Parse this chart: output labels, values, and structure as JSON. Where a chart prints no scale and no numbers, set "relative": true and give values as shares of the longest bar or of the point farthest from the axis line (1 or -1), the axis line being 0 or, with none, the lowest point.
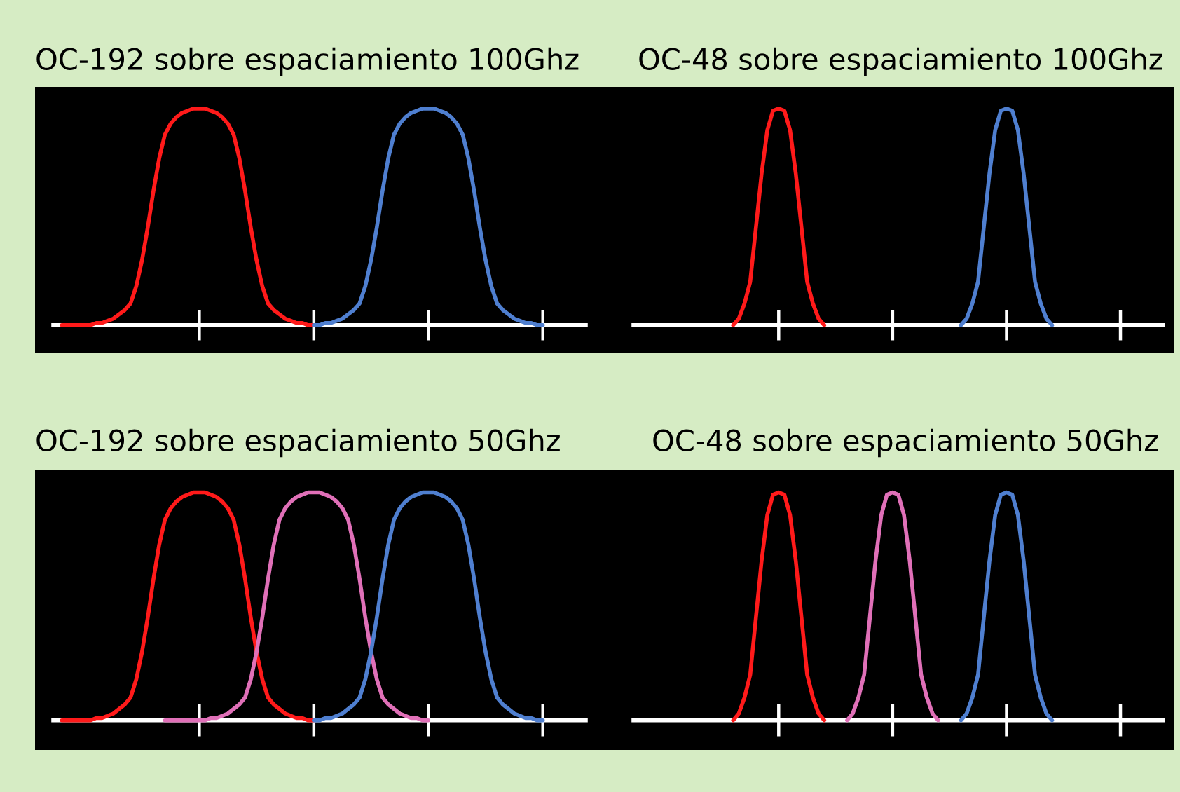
{
  "chart_data": [
    {
      "type": "line",
      "title": "OC-192 sobre espaciamiento 100Ghz",
      "relative": true,
      "categories": [
        null,
        null,
        null,
        null,
        null,
        null,
        null,
        null,
        null,
        null,
        null,
        null,
        null,
        null,
        null,
        null,
        null,
        null,
        null,
        null,
        null,
        null,
        null,
        null,
        null,
        null,
        null,
        null,
        null,
        null,
        null,
        null,
        null,
        null,
        null,
        null,
        null,
        null,
        null,
        null,
        null,
        null,
        null,
        null,
        null,
        null,
        null,
        null,
        null,
        null,
        null,
        null,
        null,
        null,
        null,
        null,
        null,
        null,
        null,
        null,
        null,
        null,
        null,
        null,
        null,
        null,
        null,
        null,
        null,
        null,
        null,
        null,
        null,
        null,
        null,
        null,
        null,
        null,
        null,
        null,
        null,
        null,
        null,
        null,
        null,
        null,
        null,
        null,
        null,
        null,
        null
      ],
      "series": [
        {
          "color": "#ff1a1a",
          "values": [
            0,
            0,
            0,
            0,
            0,
            0,
            0.01,
            0.01,
            0.02,
            0.03,
            0.05,
            0.07,
            0.1,
            0.18,
            0.3,
            0.45,
            0.62,
            0.77,
            0.88,
            0.93,
            0.96,
            0.98,
            0.99,
            1,
            1,
            1,
            0.99,
            0.98,
            0.96,
            0.93,
            0.88,
            0.77,
            0.62,
            0.45,
            0.3,
            0.18,
            0.1,
            0.07,
            0.05,
            0.03,
            0.02,
            0.01,
            0.01,
            0,
            0,
            null,
            null,
            null,
            null,
            null,
            null,
            null,
            null,
            null,
            null,
            null,
            null,
            null,
            null,
            null,
            null,
            null,
            null,
            null,
            null,
            null,
            null,
            null,
            null,
            null,
            null,
            null,
            null,
            null,
            null,
            null,
            null,
            null,
            null,
            null,
            null,
            null,
            null,
            null,
            null,
            null,
            null,
            null,
            null,
            null,
            null
          ]
        },
        {
          "color": "#4f7fd0",
          "values": [
            null,
            null,
            null,
            null,
            null,
            null,
            null,
            null,
            null,
            null,
            null,
            null,
            null,
            null,
            null,
            null,
            null,
            null,
            null,
            null,
            null,
            null,
            null,
            null,
            null,
            null,
            null,
            null,
            null,
            null,
            null,
            null,
            null,
            null,
            null,
            null,
            null,
            null,
            null,
            null,
            null,
            null,
            null,
            null,
            0,
            0,
            0.01,
            0.01,
            0.02,
            0.03,
            0.05,
            0.07,
            0.1,
            0.18,
            0.3,
            0.45,
            0.62,
            0.77,
            0.88,
            0.93,
            0.96,
            0.98,
            0.99,
            1,
            1,
            1,
            0.99,
            0.98,
            0.96,
            0.93,
            0.88,
            0.77,
            0.62,
            0.45,
            0.3,
            0.18,
            0.1,
            0.07,
            0.05,
            0.03,
            0.02,
            0.01,
            0.01,
            0,
            0,
            null,
            null,
            null,
            null,
            null,
            null
          ]
        }
      ]
    },
    {
      "type": "line",
      "title": "OC-48 sobre espaciamiento 100Ghz",
      "relative": true,
      "categories": [
        null,
        null,
        null,
        null,
        null,
        null,
        null,
        null,
        null,
        null,
        null,
        null,
        null,
        null,
        null,
        null,
        null,
        null,
        null,
        null,
        null,
        null,
        null,
        null,
        null,
        null,
        null,
        null,
        null,
        null,
        null,
        null,
        null,
        null,
        null,
        null,
        null,
        null,
        null,
        null,
        null,
        null,
        null,
        null,
        null,
        null,
        null,
        null,
        null,
        null,
        null,
        null,
        null,
        null,
        null,
        null,
        null,
        null,
        null,
        null,
        null,
        null,
        null,
        null,
        null,
        null,
        null,
        null,
        null,
        null,
        null,
        null,
        null,
        null,
        null,
        null,
        null,
        null,
        null,
        null,
        null,
        null,
        null,
        null,
        null,
        null,
        null,
        null,
        null,
        null,
        null
      ],
      "series": [
        {
          "color": "#ff1a1a",
          "values": [
            null,
            null,
            null,
            null,
            null,
            null,
            null,
            null,
            null,
            null,
            null,
            null,
            null,
            null,
            null,
            null,
            0,
            0.03,
            0.1,
            0.2,
            0.45,
            0.7,
            0.9,
            0.99,
            1,
            0.99,
            0.9,
            0.7,
            0.45,
            0.2,
            0.1,
            0.03,
            0,
            null,
            null,
            null,
            null,
            null,
            null,
            null,
            null,
            null,
            null,
            null,
            null,
            null,
            null,
            null,
            null,
            null,
            null,
            null,
            null,
            null,
            null,
            null,
            null,
            null,
            null,
            null,
            null,
            null,
            null,
            null,
            null,
            null,
            null,
            null,
            null,
            null,
            null,
            null,
            null,
            null,
            null,
            null,
            null,
            null,
            null,
            null,
            null,
            null,
            null,
            null,
            null,
            null,
            null,
            null,
            null,
            null,
            null
          ]
        },
        {
          "color": "#4f7fd0",
          "values": [
            null,
            null,
            null,
            null,
            null,
            null,
            null,
            null,
            null,
            null,
            null,
            null,
            null,
            null,
            null,
            null,
            null,
            null,
            null,
            null,
            null,
            null,
            null,
            null,
            null,
            null,
            null,
            null,
            null,
            null,
            null,
            null,
            null,
            null,
            null,
            null,
            null,
            null,
            null,
            null,
            null,
            null,
            null,
            null,
            null,
            null,
            null,
            null,
            null,
            null,
            null,
            null,
            null,
            null,
            null,
            null,
            0,
            0.03,
            0.1,
            0.2,
            0.45,
            0.7,
            0.9,
            0.99,
            1,
            0.99,
            0.9,
            0.7,
            0.45,
            0.2,
            0.1,
            0.03,
            0,
            null,
            null,
            null,
            null,
            null,
            null,
            null,
            null,
            null,
            null,
            null,
            null,
            null,
            null,
            null,
            null,
            null,
            null
          ]
        }
      ]
    },
    {
      "type": "line",
      "title": "OC-192 sobre espaciamiento 50Ghz",
      "relative": true,
      "categories": [
        null,
        null,
        null,
        null,
        null,
        null,
        null,
        null,
        null,
        null,
        null,
        null,
        null,
        null,
        null,
        null,
        null,
        null,
        null,
        null,
        null,
        null,
        null,
        null,
        null,
        null,
        null,
        null,
        null,
        null,
        null,
        null,
        null,
        null,
        null,
        null,
        null,
        null,
        null,
        null,
        null,
        null,
        null,
        null,
        null,
        null,
        null,
        null,
        null,
        null,
        null,
        null,
        null,
        null,
        null,
        null,
        null,
        null,
        null,
        null,
        null,
        null,
        null,
        null,
        null,
        null,
        null,
        null,
        null,
        null,
        null,
        null,
        null,
        null,
        null,
        null,
        null,
        null,
        null,
        null,
        null,
        null,
        null,
        null,
        null,
        null,
        null,
        null,
        null,
        null,
        null
      ],
      "series": [
        {
          "color": "#ff1a1a",
          "values": [
            0,
            0,
            0,
            0,
            0,
            0,
            0.01,
            0.01,
            0.02,
            0.03,
            0.05,
            0.07,
            0.1,
            0.18,
            0.3,
            0.45,
            0.62,
            0.77,
            0.88,
            0.93,
            0.96,
            0.98,
            0.99,
            1,
            1,
            1,
            0.99,
            0.98,
            0.96,
            0.93,
            0.88,
            0.77,
            0.62,
            0.45,
            0.3,
            0.18,
            0.1,
            0.07,
            0.05,
            0.03,
            0.02,
            0.01,
            0.01,
            0,
            0,
            null,
            null,
            null,
            null,
            null,
            null,
            null,
            null,
            null,
            null,
            null,
            null,
            null,
            null,
            null,
            null,
            null,
            null,
            null,
            null,
            null,
            null,
            null,
            null,
            null,
            null,
            null,
            null,
            null,
            null,
            null,
            null,
            null,
            null,
            null,
            null,
            null,
            null,
            null,
            null,
            null,
            null,
            null,
            null,
            null,
            null
          ]
        },
        {
          "color": "#e070b8",
          "values": [
            null,
            null,
            null,
            null,
            null,
            null,
            null,
            null,
            null,
            null,
            null,
            null,
            null,
            null,
            null,
            null,
            null,
            null,
            0,
            0,
            0,
            0,
            0,
            0,
            0,
            0,
            0.01,
            0.01,
            0.02,
            0.03,
            0.05,
            0.07,
            0.1,
            0.18,
            0.3,
            0.45,
            0.62,
            0.77,
            0.88,
            0.93,
            0.96,
            0.98,
            0.99,
            1,
            1,
            1,
            0.99,
            0.98,
            0.96,
            0.93,
            0.88,
            0.77,
            0.62,
            0.45,
            0.3,
            0.18,
            0.1,
            0.07,
            0.05,
            0.03,
            0.02,
            0.01,
            0.01,
            0,
            0,
            null,
            null,
            null,
            null,
            null,
            null,
            null,
            null,
            null,
            null,
            null,
            null,
            null,
            null,
            null,
            null,
            null,
            null,
            null,
            null,
            null,
            null,
            null,
            null,
            null,
            null
          ]
        },
        {
          "color": "#4f7fd0",
          "values": [
            null,
            null,
            null,
            null,
            null,
            null,
            null,
            null,
            null,
            null,
            null,
            null,
            null,
            null,
            null,
            null,
            null,
            null,
            null,
            null,
            null,
            null,
            null,
            null,
            null,
            null,
            null,
            null,
            null,
            null,
            null,
            null,
            null,
            null,
            null,
            null,
            null,
            null,
            null,
            null,
            null,
            null,
            null,
            null,
            0,
            0,
            0.01,
            0.01,
            0.02,
            0.03,
            0.05,
            0.07,
            0.1,
            0.18,
            0.3,
            0.45,
            0.62,
            0.77,
            0.88,
            0.93,
            0.96,
            0.98,
            0.99,
            1,
            1,
            1,
            0.99,
            0.98,
            0.96,
            0.93,
            0.88,
            0.77,
            0.62,
            0.45,
            0.3,
            0.18,
            0.1,
            0.07,
            0.05,
            0.03,
            0.02,
            0.01,
            0.01,
            0,
            0,
            null,
            null,
            null,
            null,
            null,
            null
          ]
        }
      ]
    },
    {
      "type": "line",
      "title": "OC-48 sobre espaciamiento 50Ghz",
      "relative": true,
      "categories": [
        null,
        null,
        null,
        null,
        null,
        null,
        null,
        null,
        null,
        null,
        null,
        null,
        null,
        null,
        null,
        null,
        null,
        null,
        null,
        null,
        null,
        null,
        null,
        null,
        null,
        null,
        null,
        null,
        null,
        null,
        null,
        null,
        null,
        null,
        null,
        null,
        null,
        null,
        null,
        null,
        null,
        null,
        null,
        null,
        null,
        null,
        null,
        null,
        null,
        null,
        null,
        null,
        null,
        null,
        null,
        null,
        null,
        null,
        null,
        null,
        null,
        null,
        null,
        null,
        null,
        null,
        null,
        null,
        null,
        null,
        null,
        null,
        null,
        null,
        null,
        null,
        null,
        null,
        null,
        null,
        null,
        null,
        null,
        null,
        null,
        null,
        null,
        null,
        null,
        null,
        null
      ],
      "series": [
        {
          "color": "#ff1a1a",
          "values": [
            null,
            null,
            null,
            null,
            null,
            null,
            null,
            null,
            null,
            null,
            null,
            null,
            null,
            null,
            null,
            null,
            0,
            0.03,
            0.1,
            0.2,
            0.45,
            0.7,
            0.9,
            0.99,
            1,
            0.99,
            0.9,
            0.7,
            0.45,
            0.2,
            0.1,
            0.03,
            0,
            null,
            null,
            null,
            null,
            null,
            null,
            null,
            null,
            null,
            null,
            null,
            null,
            null,
            null,
            null,
            null,
            null,
            null,
            null,
            null,
            null,
            null,
            null,
            null,
            null,
            null,
            null,
            null,
            null,
            null,
            null,
            null,
            null,
            null,
            null,
            null,
            null,
            null,
            null,
            null,
            null,
            null,
            null,
            null,
            null,
            null,
            null,
            null,
            null,
            null,
            null,
            null,
            null,
            null,
            null,
            null,
            null,
            null
          ]
        },
        {
          "color": "#e070b8",
          "values": [
            null,
            null,
            null,
            null,
            null,
            null,
            null,
            null,
            null,
            null,
            null,
            null,
            null,
            null,
            null,
            null,
            null,
            null,
            null,
            null,
            null,
            null,
            null,
            null,
            null,
            null,
            null,
            null,
            null,
            null,
            null,
            null,
            null,
            null,
            null,
            null,
            0,
            0.03,
            0.1,
            0.2,
            0.45,
            0.7,
            0.9,
            0.99,
            1,
            0.99,
            0.9,
            0.7,
            0.45,
            0.2,
            0.1,
            0.03,
            0,
            null,
            null,
            null,
            null,
            null,
            null,
            null,
            null,
            null,
            null,
            null,
            null,
            null,
            null,
            null,
            null,
            null,
            null,
            null,
            null,
            null,
            null,
            null,
            null,
            null,
            null,
            null,
            null,
            null,
            null,
            null,
            null,
            null,
            null,
            null,
            null,
            null,
            null
          ]
        },
        {
          "color": "#4f7fd0",
          "values": [
            null,
            null,
            null,
            null,
            null,
            null,
            null,
            null,
            null,
            null,
            null,
            null,
            null,
            null,
            null,
            null,
            null,
            null,
            null,
            null,
            null,
            null,
            null,
            null,
            null,
            null,
            null,
            null,
            null,
            null,
            null,
            null,
            null,
            null,
            null,
            null,
            null,
            null,
            null,
            null,
            null,
            null,
            null,
            null,
            null,
            null,
            null,
            null,
            null,
            null,
            null,
            null,
            null,
            null,
            null,
            null,
            0,
            0.03,
            0.1,
            0.2,
            0.45,
            0.7,
            0.9,
            0.99,
            1,
            0.99,
            0.9,
            0.7,
            0.45,
            0.2,
            0.1,
            0.03,
            0,
            null,
            null,
            null,
            null,
            null,
            null,
            null,
            null,
            null,
            null,
            null,
            null,
            null,
            null,
            null,
            null,
            null,
            null
          ]
        }
      ]
    }
  ]
}
